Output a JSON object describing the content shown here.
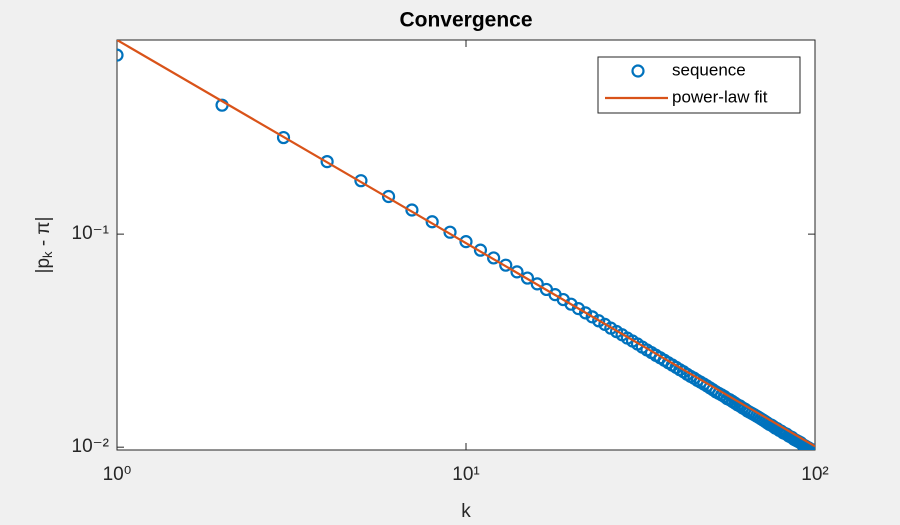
{
  "chart_data": {
    "type": "scatter-line",
    "title": "Convergence",
    "xlabel": "k",
    "ylabel": [
      "|p",
      "k",
      " - π|"
    ],
    "xscale": "log",
    "yscale": "log",
    "xlim": [
      1,
      100
    ],
    "ylim": [
      0.0097,
      0.815
    ],
    "xticks": [
      {
        "value": 1,
        "label": "10⁰"
      },
      {
        "value": 10,
        "label": "10¹"
      },
      {
        "value": 100,
        "label": "10²"
      }
    ],
    "yticks": [
      {
        "value": 0.01,
        "label": "10⁻²"
      },
      {
        "value": 0.1,
        "label": "10⁻¹"
      }
    ],
    "legend": "top-right",
    "series": [
      {
        "name": "sequence",
        "style": "markers",
        "color": "#0072BD",
        "x": [
          1,
          2,
          3,
          4,
          5,
          6,
          7,
          8,
          9,
          10,
          11,
          12,
          13,
          14,
          15,
          16,
          17,
          18,
          19,
          20,
          21,
          22,
          23,
          24,
          25,
          26,
          27,
          28,
          29,
          30,
          31,
          32,
          33,
          34,
          35,
          36,
          37,
          38,
          39,
          40,
          41,
          42,
          43,
          44,
          45,
          46,
          47,
          48,
          49,
          50,
          51,
          52,
          53,
          54,
          55,
          56,
          57,
          58,
          59,
          60,
          61,
          62,
          63,
          64,
          65,
          66,
          67,
          68,
          69,
          70,
          71,
          72,
          73,
          74,
          75,
          76,
          77,
          78,
          79,
          80,
          81,
          82,
          83,
          84,
          85,
          86,
          87,
          88,
          89,
          90,
          91,
          92,
          93,
          94,
          95,
          96,
          97,
          98,
          99,
          100
        ],
        "values": [
          0.692,
          0.403,
          0.284,
          0.219,
          0.1782,
          0.1502,
          0.1298,
          0.1143,
          0.1021,
          0.0922,
          0.0841,
          0.0773,
          0.0715,
          0.0665,
          0.0622,
          0.0584,
          0.055,
          0.052,
          0.0493,
          0.0469,
          0.0447,
          0.0427,
          0.0409,
          0.0392,
          0.0377,
          0.0362,
          0.0349,
          0.0337,
          0.0325,
          0.0315,
          0.0305,
          0.0295,
          0.0286,
          0.0278,
          0.027,
          0.0263,
          0.0256,
          0.0249,
          0.0243,
          0.0237,
          0.0231,
          0.0226,
          0.022,
          0.0215,
          0.0211,
          0.0206,
          0.0202,
          0.0198,
          0.0194,
          0.019,
          0.0186,
          0.0182,
          0.0179,
          0.0176,
          0.0173,
          0.0169,
          0.0167,
          0.0164,
          0.0161,
          0.0158,
          0.0156,
          0.0153,
          0.0151,
          0.0148,
          0.0146,
          0.0144,
          0.0142,
          0.014,
          0.0138,
          0.0136,
          0.0134,
          0.0132,
          0.013,
          0.0128,
          0.0127,
          0.0125,
          0.0123,
          0.0122,
          0.012,
          0.0119,
          0.0117,
          0.0116,
          0.0115,
          0.0113,
          0.0112,
          0.0111,
          0.0109,
          0.0108,
          0.0107,
          0.0106,
          0.0105,
          0.0103,
          0.0102,
          0.0101,
          0.01,
          0.00991,
          0.0098,
          0.00971,
          0.00962,
          0.00952
        ]
      },
      {
        "name": "power-law fit",
        "style": "line",
        "color": "#D95319",
        "x": [
          1,
          100
        ],
        "values": [
          0.815,
          0.0101
        ]
      }
    ]
  }
}
